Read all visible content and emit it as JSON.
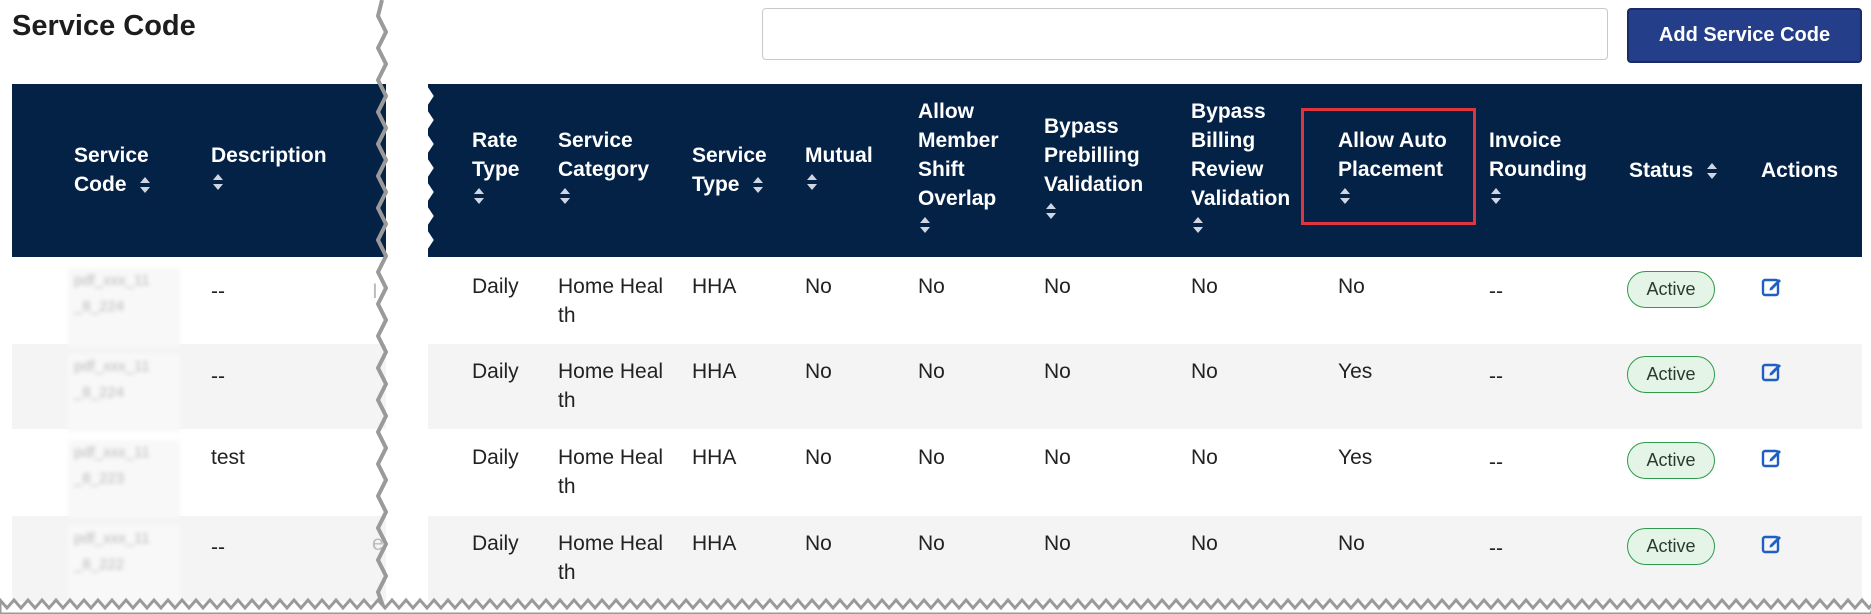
{
  "page": {
    "title": "Service Code"
  },
  "search": {
    "value": "",
    "placeholder": ""
  },
  "toolbar": {
    "add_label": "Add Service Code"
  },
  "table": {
    "columns": [
      {
        "line1": "Service",
        "line2": "Code",
        "sortable": true
      },
      {
        "line1": "Description",
        "line2": "",
        "sortable": true
      },
      {
        "line1": "Rate",
        "line2": "Type",
        "sortable": true
      },
      {
        "line1": "Service",
        "line2": "Category",
        "sortable": true
      },
      {
        "line1": "Service",
        "line2": "Type",
        "sortable": true
      },
      {
        "line1": "Mutual",
        "line2": "",
        "sortable": true
      },
      {
        "line1": "Allow",
        "line2": "Member",
        "line3": "Shift",
        "line4": "Overlap",
        "sortable": true
      },
      {
        "line1": "Bypass",
        "line2": "Prebilling",
        "line3": "Validation",
        "sortable": true
      },
      {
        "line1": "Bypass",
        "line2": "Billing",
        "line3": "Review",
        "line4": "Validation",
        "sortable": true
      },
      {
        "line1": "Allow Auto",
        "line2": "Placement",
        "sortable": true
      },
      {
        "line1": "Invoice",
        "line2": "Rounding",
        "sortable": true
      },
      {
        "line1": "Status",
        "line2": "",
        "sortable": true
      },
      {
        "line1": "Actions",
        "line2": "",
        "sortable": false
      }
    ],
    "rows": [
      {
        "description": "--",
        "desc_trunc": "I",
        "rate_type": "Daily",
        "category_l1": "Home Heal",
        "category_l2": "th",
        "service_type": "HHA",
        "mutual": "No",
        "shift_overlap": "No",
        "bypass_prebilling": "No",
        "bypass_billing_review": "No",
        "auto_placement": "No",
        "invoice_rounding": "--",
        "status": "Active"
      },
      {
        "description": "--",
        "desc_trunc": "",
        "rate_type": "Daily",
        "category_l1": "Home Heal",
        "category_l2": "th",
        "service_type": "HHA",
        "mutual": "No",
        "shift_overlap": "No",
        "bypass_prebilling": "No",
        "bypass_billing_review": "No",
        "auto_placement": "Yes",
        "invoice_rounding": "--",
        "status": "Active"
      },
      {
        "description": "test",
        "desc_trunc": "",
        "rate_type": "Daily",
        "category_l1": "Home Heal",
        "category_l2": "th",
        "service_type": "HHA",
        "mutual": "No",
        "shift_overlap": "No",
        "bypass_prebilling": "No",
        "bypass_billing_review": "No",
        "auto_placement": "Yes",
        "invoice_rounding": "--",
        "status": "Active"
      },
      {
        "description": "--",
        "desc_trunc": "e",
        "rate_type": "Daily",
        "category_l1": "Home Heal",
        "category_l2": "th",
        "service_type": "HHA",
        "mutual": "No",
        "shift_overlap": "No",
        "bypass_prebilling": "No",
        "bypass_billing_review": "No",
        "auto_placement": "No",
        "invoice_rounding": "--",
        "status": "Active"
      }
    ]
  },
  "icons": {
    "sort": "sort-icon",
    "edit": "edit-icon"
  },
  "colors": {
    "header_bg": "#042246",
    "primary_button": "#243e8a",
    "status_border": "#2e9b4a",
    "status_bg": "#e4f4e6",
    "highlight": "#e0343e",
    "edit_icon": "#1f5fc4"
  }
}
